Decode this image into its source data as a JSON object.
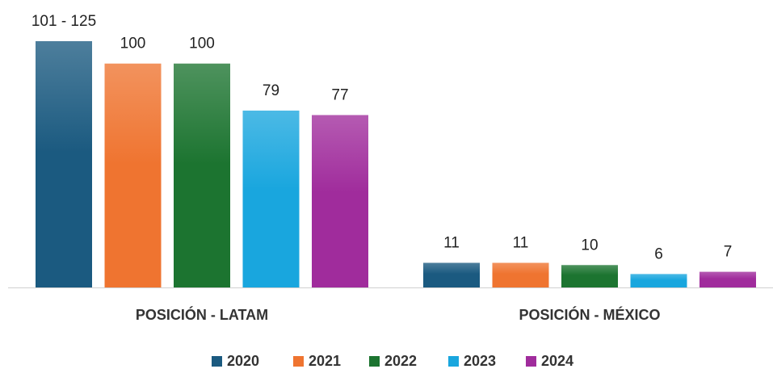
{
  "chart_data": {
    "type": "bar",
    "categories": [
      "POSICIÓN - LATAM",
      "POSICIÓN - MÉXICO"
    ],
    "series": [
      {
        "name": "2020",
        "color": "#1b5a80",
        "values": [
          110,
          11
        ],
        "value_labels": [
          "101 - 125",
          "11"
        ]
      },
      {
        "name": "2021",
        "color": "#ef7430",
        "values": [
          100,
          11
        ]
      },
      {
        "name": "2022",
        "color": "#1c7430",
        "values": [
          100,
          10
        ]
      },
      {
        "name": "2023",
        "color": "#19a6de",
        "values": [
          79,
          6
        ]
      },
      {
        "name": "2024",
        "color": "#a02c9c",
        "values": [
          77,
          7
        ]
      }
    ],
    "legend": "bottom"
  }
}
